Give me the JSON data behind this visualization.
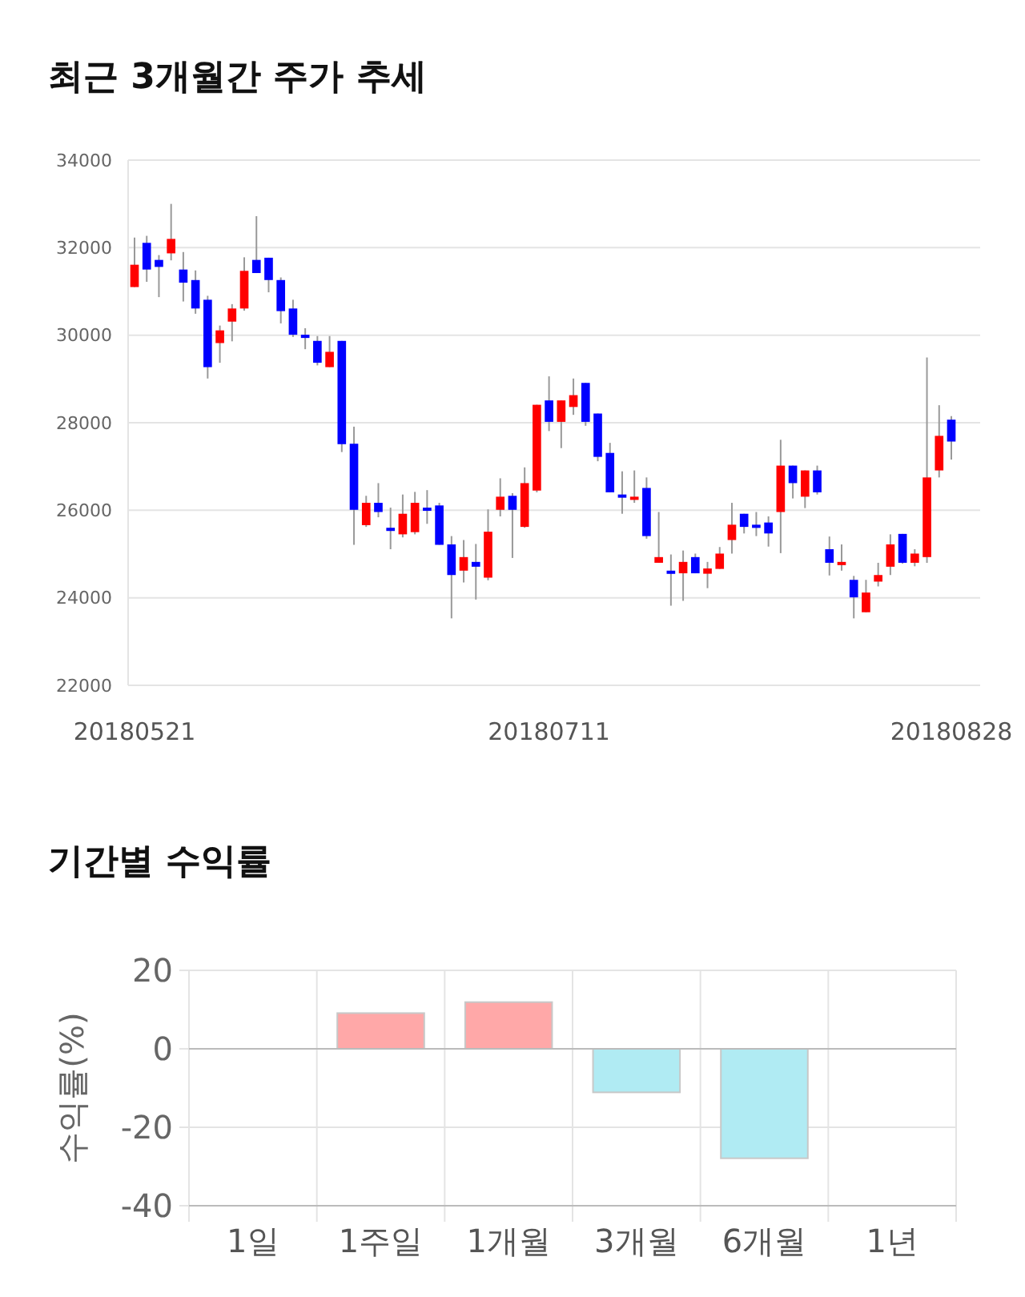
{
  "chart_data": [
    {
      "type": "candlestick",
      "title": "최근 3개월간 주가 추세",
      "categories": [
        "20180521",
        null,
        null,
        null,
        null,
        null,
        null,
        null,
        null,
        null,
        null,
        null,
        null,
        null,
        null,
        null,
        null,
        null,
        null,
        null,
        null,
        null,
        null,
        null,
        null,
        null,
        null,
        null,
        null,
        null,
        null,
        null,
        null,
        null,
        "20180711",
        null,
        null,
        null,
        null,
        null,
        null,
        null,
        null,
        null,
        null,
        null,
        null,
        null,
        null,
        null,
        null,
        null,
        null,
        null,
        null,
        null,
        null,
        null,
        null,
        null,
        null,
        null,
        null,
        null,
        null,
        null,
        null,
        "20180828"
      ],
      "ohlc": [
        [
          31100,
          32230,
          31100,
          31610
        ],
        [
          32110,
          32270,
          31220,
          31500
        ],
        [
          31720,
          31830,
          30870,
          31560
        ],
        [
          31870,
          33000,
          31710,
          32200
        ],
        [
          31500,
          31900,
          30770,
          31200
        ],
        [
          31260,
          31480,
          30490,
          30610
        ],
        [
          30810,
          30900,
          29010,
          29270
        ],
        [
          29820,
          30220,
          29370,
          30110
        ],
        [
          30310,
          30710,
          29860,
          30610
        ],
        [
          30610,
          31780,
          30560,
          31470
        ],
        [
          31720,
          32720,
          31420,
          31420
        ],
        [
          31770,
          31770,
          30980,
          31260
        ],
        [
          31260,
          31320,
          30270,
          30550
        ],
        [
          30610,
          30810,
          29960,
          30010
        ],
        [
          30010,
          30160,
          29680,
          29970
        ],
        [
          29870,
          29980,
          29310,
          29370
        ],
        [
          29270,
          29980,
          29270,
          29620
        ],
        [
          29870,
          29870,
          27330,
          27510
        ],
        [
          27520,
          27910,
          25210,
          26010
        ],
        [
          25660,
          26330,
          25620,
          26170
        ],
        [
          26170,
          26620,
          25840,
          25960
        ],
        [
          25600,
          26060,
          25110,
          25560
        ],
        [
          25450,
          26360,
          25380,
          25920
        ],
        [
          25500,
          26420,
          25450,
          26170
        ],
        [
          26060,
          26460,
          25690,
          26000
        ],
        [
          26110,
          26170,
          25210,
          25210
        ],
        [
          25220,
          25410,
          23530,
          24520
        ],
        [
          24620,
          25320,
          24350,
          24930
        ],
        [
          24820,
          25230,
          23960,
          24710
        ],
        [
          24460,
          26020,
          24400,
          25510
        ],
        [
          26010,
          26730,
          25860,
          26310
        ],
        [
          26330,
          26390,
          24910,
          26010
        ],
        [
          25620,
          26980,
          25600,
          26620
        ],
        [
          26450,
          28410,
          26410,
          28410
        ],
        [
          28510,
          29060,
          27810,
          28020
        ],
        [
          28020,
          28510,
          27420,
          28510
        ],
        [
          28360,
          29010,
          28180,
          28630
        ],
        [
          28910,
          28910,
          27930,
          28020
        ],
        [
          28210,
          28210,
          27120,
          27220
        ],
        [
          27310,
          27540,
          26410,
          26410
        ],
        [
          26360,
          26890,
          25920,
          26310
        ],
        [
          26270,
          26910,
          26170,
          26310
        ],
        [
          26510,
          26750,
          25350,
          25410
        ],
        [
          24800,
          25960,
          24800,
          24930
        ],
        [
          24620,
          24990,
          23820,
          24560
        ],
        [
          24560,
          25080,
          23930,
          24820
        ],
        [
          24930,
          25010,
          24560,
          24560
        ],
        [
          24550,
          24820,
          24220,
          24670
        ],
        [
          24660,
          25160,
          24660,
          25010
        ],
        [
          25320,
          26170,
          25010,
          25670
        ],
        [
          25920,
          25920,
          25470,
          25620
        ],
        [
          25670,
          25960,
          25410,
          25620
        ],
        [
          25720,
          25860,
          25170,
          25470
        ],
        [
          25960,
          27610,
          25020,
          27020
        ],
        [
          27020,
          27020,
          26270,
          26620
        ],
        [
          26310,
          26910,
          26050,
          26910
        ],
        [
          26910,
          27020,
          26360,
          26410
        ],
        [
          25110,
          25400,
          24510,
          24800
        ],
        [
          24770,
          25220,
          24620,
          24820
        ],
        [
          24410,
          24500,
          23530,
          24010
        ],
        [
          23670,
          24410,
          23670,
          24120
        ],
        [
          24370,
          24800,
          24260,
          24520
        ],
        [
          24710,
          25450,
          24520,
          25220
        ],
        [
          25460,
          25460,
          24780,
          24800
        ],
        [
          24800,
          25110,
          24720,
          25010
        ],
        [
          24930,
          29490,
          24800,
          26750
        ],
        [
          26910,
          28400,
          26750,
          27700
        ],
        [
          28070,
          28150,
          27160,
          27570
        ]
      ],
      "colors": [
        "#ff0000",
        "#0000ff",
        "#0000ff",
        "#ff0000",
        "#0000ff",
        "#0000ff",
        "#0000ff",
        "#ff0000",
        "#ff0000",
        "#ff0000",
        "#0000ff",
        "#0000ff",
        "#0000ff",
        "#0000ff",
        "#0000ff",
        "#0000ff",
        "#ff0000",
        "#0000ff",
        "#0000ff",
        "#ff0000",
        "#0000ff",
        "#0000ff",
        "#ff0000",
        "#ff0000",
        "#0000ff",
        "#0000ff",
        "#0000ff",
        "#ff0000",
        "#0000ff",
        "#ff0000",
        "#ff0000",
        "#0000ff",
        "#ff0000",
        "#ff0000",
        "#0000ff",
        "#ff0000",
        "#ff0000",
        "#0000ff",
        "#0000ff",
        "#0000ff",
        "#0000ff",
        "#ff0000",
        "#0000ff",
        "#ff0000",
        "#0000ff",
        "#ff0000",
        "#0000ff",
        "#ff0000",
        "#ff0000",
        "#ff0000",
        "#0000ff",
        "#0000ff",
        "#0000ff",
        "#ff0000",
        "#0000ff",
        "#ff0000",
        "#0000ff",
        "#0000ff",
        "#ff0000",
        "#0000ff",
        "#ff0000",
        "#ff0000",
        "#ff0000",
        "#0000ff",
        "#ff0000",
        "#ff0000",
        "#ff0000",
        "#0000ff"
      ],
      "ylim": [
        22000,
        34000
      ],
      "yticks": [
        22000,
        24000,
        26000,
        28000,
        30000,
        32000,
        34000
      ],
      "grid": "y"
    },
    {
      "type": "bar",
      "title": "기간별 수익률",
      "ylabel": "수익률(%)",
      "categories": [
        "1일",
        "1주일",
        "1개월",
        "3개월",
        "6개월",
        "1년"
      ],
      "values": [
        null,
        9.1,
        11.9,
        -11.1,
        -27.9,
        null
      ],
      "colors": [
        null,
        "#ffa8a8",
        "#ffa8a8",
        "#b0ebf3",
        "#b0ebf3",
        null
      ],
      "ylim": [
        -40,
        20
      ],
      "yticks": [
        -40,
        -20,
        0,
        20
      ],
      "grid": true
    }
  ]
}
